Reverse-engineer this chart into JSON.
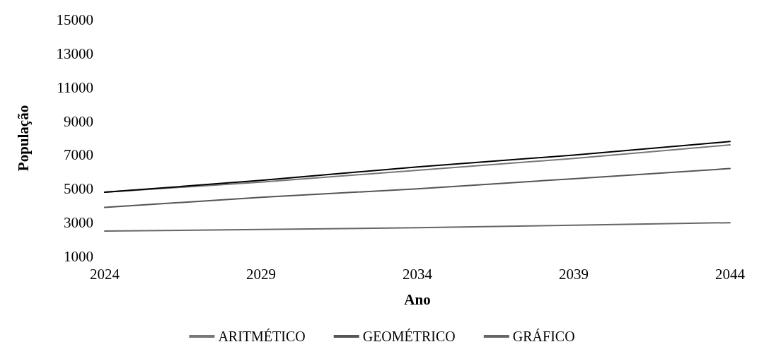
{
  "chart_data": {
    "type": "line",
    "xlabel": "Ano",
    "ylabel": "População",
    "x": [
      2024,
      2029,
      2034,
      2039,
      2044
    ],
    "series": [
      {
        "name": "ARITMÉTICO",
        "color": "#777777",
        "values": [
          4800,
          5400,
          6100,
          6800,
          7600
        ]
      },
      {
        "name": "GEOMÉTRICO",
        "color": "#555555",
        "values": [
          3900,
          4500,
          5000,
          5600,
          6200
        ]
      },
      {
        "name": "GRÁFICO",
        "color": "#666666",
        "values": [
          2500,
          2600,
          2700,
          2850,
          3000
        ]
      },
      {
        "color": "#000000",
        "values": [
          4800,
          5500,
          6300,
          7000,
          7800
        ]
      }
    ],
    "xlim": [
      2024,
      2044
    ],
    "xticks": [
      2024,
      2029,
      2034,
      2039,
      2044
    ],
    "ylim": [
      1000,
      15000
    ],
    "yticks": [
      1000,
      3000,
      5000,
      7000,
      9000,
      11000,
      13000,
      15000
    ],
    "grid": false,
    "legend": "bottom",
    "marker": "none",
    "line_style": "solid"
  }
}
